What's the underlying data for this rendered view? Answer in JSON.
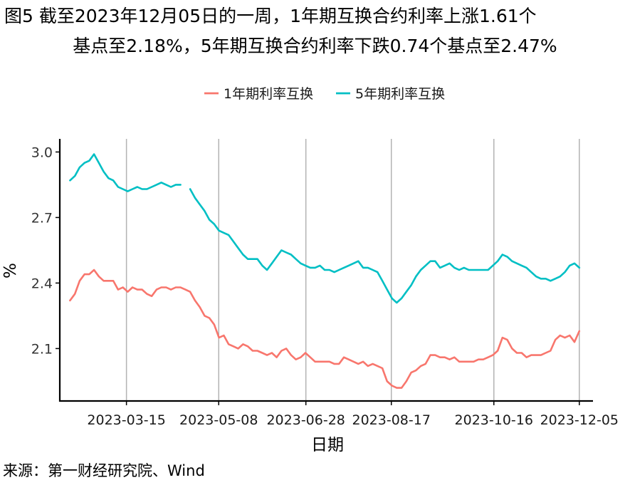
{
  "title_line1": "图5  截至2023年12月05日的一周，1年期互换合约利率上涨1.61个",
  "title_line2": "基点至2.18%，5年期互换合约利率下跌0.74个基点至2.47%",
  "source": "来源：第一财经研究院、Wind",
  "chart_data": {
    "type": "line",
    "xlabel": "日期",
    "ylabel": "%",
    "x_start": "2023-02-10",
    "x_end": "2023-12-05",
    "xlim": [
      "2023-02-04",
      "2023-12-13"
    ],
    "ylim": [
      1.86,
      3.06
    ],
    "x_ticks": [
      "2023-03-15",
      "2023-05-08",
      "2023-06-28",
      "2023-08-17",
      "2023-10-16",
      "2023-12-05"
    ],
    "y_ticks": [
      2.1,
      2.4,
      2.7,
      3.0
    ],
    "y_tick_labels": [
      "2.1",
      "2.4",
      "2.7",
      "3.0"
    ],
    "grid": "vertical major gridlines at x ticks",
    "legend": "top",
    "series": [
      {
        "name": "1年期利率互换",
        "color": "#F8766D",
        "values": [
          2.32,
          2.35,
          2.41,
          2.44,
          2.44,
          2.46,
          2.43,
          2.41,
          2.41,
          2.41,
          2.37,
          2.38,
          2.36,
          2.38,
          2.37,
          2.37,
          2.35,
          2.34,
          2.37,
          2.38,
          2.38,
          2.37,
          2.38,
          2.38,
          2.37,
          2.36,
          2.32,
          2.29,
          2.25,
          2.24,
          2.21,
          2.15,
          2.16,
          2.12,
          2.11,
          2.1,
          2.12,
          2.11,
          2.09,
          2.09,
          2.08,
          2.07,
          2.08,
          2.06,
          2.09,
          2.1,
          2.07,
          2.05,
          2.06,
          2.08,
          2.06,
          2.04,
          2.04,
          2.04,
          2.04,
          2.03,
          2.03,
          2.06,
          2.05,
          2.04,
          2.03,
          2.04,
          2.02,
          2.03,
          2.02,
          2.01,
          1.95,
          1.93,
          1.92,
          1.92,
          1.95,
          1.99,
          2.0,
          2.02,
          2.03,
          2.07,
          2.07,
          2.06,
          2.06,
          2.05,
          2.06,
          2.04,
          2.04,
          2.04,
          2.04,
          2.05,
          2.05,
          2.06,
          2.07,
          2.09,
          2.15,
          2.14,
          2.1,
          2.08,
          2.08,
          2.06,
          2.07,
          2.07,
          2.07,
          2.08,
          2.09,
          2.14,
          2.16,
          2.15,
          2.16,
          2.13,
          2.18
        ]
      },
      {
        "name": "5年期利率互换",
        "color": "#00BFC4",
        "values": [
          2.87,
          2.89,
          2.93,
          2.95,
          2.96,
          2.99,
          2.95,
          2.91,
          2.88,
          2.87,
          2.84,
          2.83,
          2.82,
          2.83,
          2.84,
          2.83,
          2.83,
          2.84,
          2.85,
          2.86,
          2.85,
          2.84,
          2.85,
          2.85,
          null,
          2.83,
          2.79,
          2.76,
          2.73,
          2.69,
          2.67,
          2.64,
          2.63,
          2.62,
          2.59,
          2.56,
          2.53,
          2.51,
          2.51,
          2.51,
          2.48,
          2.46,
          2.49,
          2.52,
          2.55,
          2.54,
          2.53,
          2.51,
          2.49,
          2.48,
          2.47,
          2.47,
          2.48,
          2.46,
          2.46,
          2.45,
          2.46,
          2.47,
          2.48,
          2.49,
          2.5,
          2.47,
          2.47,
          2.46,
          2.45,
          2.41,
          2.37,
          2.33,
          2.31,
          2.33,
          2.36,
          2.39,
          2.43,
          2.46,
          2.48,
          2.5,
          2.5,
          2.47,
          2.48,
          2.49,
          2.47,
          2.46,
          2.47,
          2.46,
          2.46,
          2.46,
          2.46,
          2.46,
          2.48,
          2.5,
          2.53,
          2.52,
          2.5,
          2.49,
          2.48,
          2.47,
          2.45,
          2.43,
          2.42,
          2.42,
          2.41,
          2.42,
          2.43,
          2.45,
          2.48,
          2.49,
          2.47
        ]
      }
    ]
  }
}
